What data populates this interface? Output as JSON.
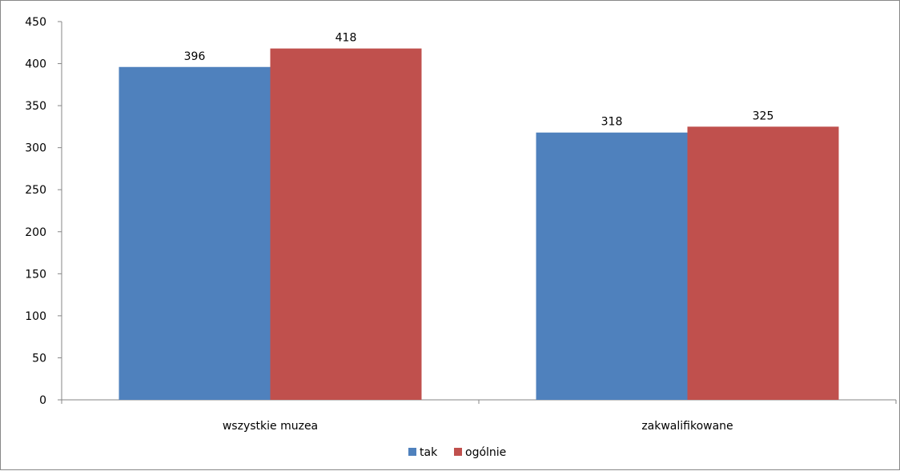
{
  "chart_data": {
    "type": "bar",
    "categories": [
      "wszystkie muzea",
      "zakwalifikowane"
    ],
    "series": [
      {
        "name": "tak",
        "values": [
          396,
          318
        ],
        "color": "#4F81BD"
      },
      {
        "name": "ogólnie",
        "values": [
          418,
          325
        ],
        "color": "#C0504D"
      }
    ],
    "ylim": [
      0,
      450
    ],
    "yticks": [
      0,
      50,
      100,
      150,
      200,
      250,
      300,
      350,
      400,
      450
    ],
    "grid": false,
    "legend_position": "bottom",
    "data_labels": true
  }
}
